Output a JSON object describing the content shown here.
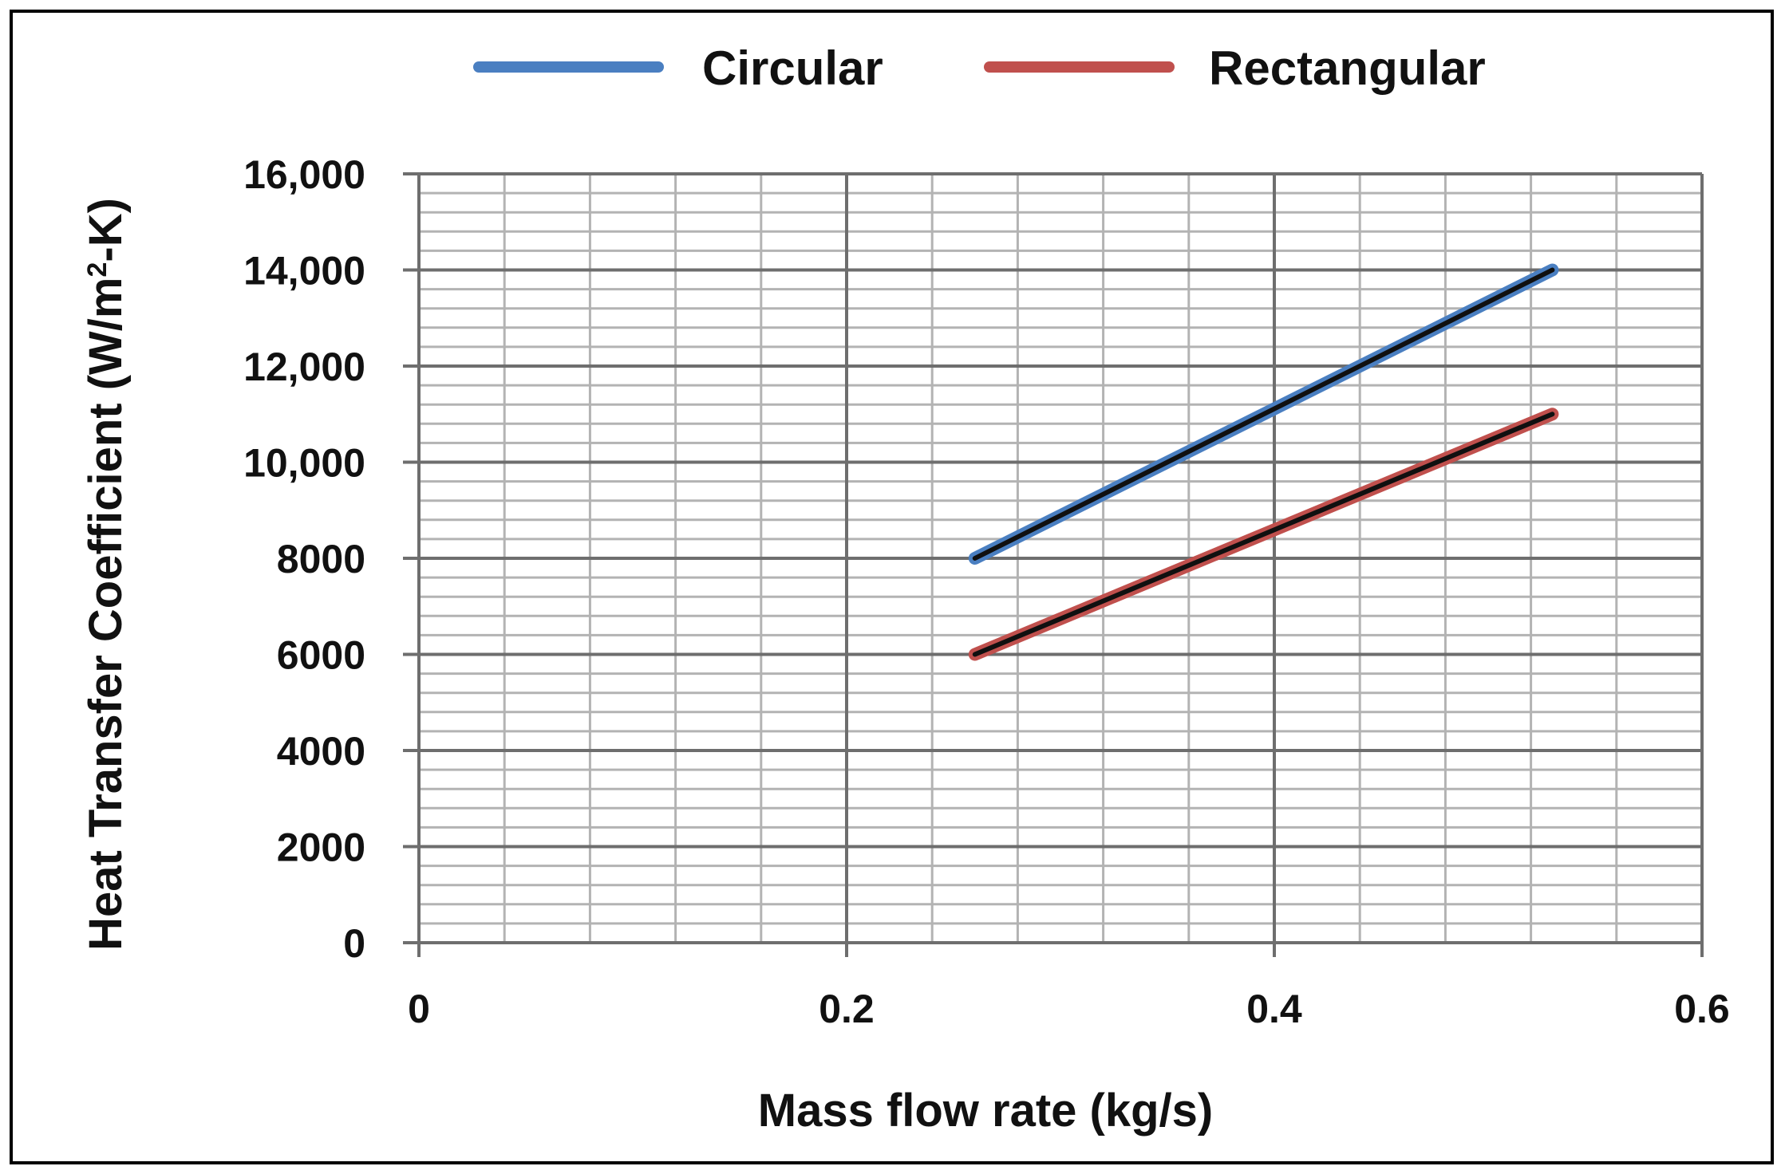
{
  "chart_data": {
    "type": "line",
    "title": "",
    "xlabel": "Mass flow rate (kg/s)",
    "ylabel_parts": {
      "main": "Heat Transfer Coefficient  (W/m",
      "sup": "2",
      "tail": "-K)"
    },
    "xlim": [
      0,
      0.6
    ],
    "ylim": [
      0,
      16000
    ],
    "x_ticks": [
      0,
      0.2,
      0.4,
      0.6
    ],
    "x_tick_labels": [
      "0",
      "0.2",
      "0.4",
      "0.6"
    ],
    "y_ticks": [
      0,
      2000,
      4000,
      6000,
      8000,
      10000,
      12000,
      14000,
      16000
    ],
    "y_tick_labels": [
      "0",
      "2000",
      "4000",
      "6000",
      "8000",
      "10,000",
      "12,000",
      "14,000",
      "16,000"
    ],
    "grid": true,
    "legend_position": "top",
    "series": [
      {
        "name": "Circular",
        "color": "#4a7fc1",
        "x": [
          0.26,
          0.53
        ],
        "y": [
          8000,
          14000
        ]
      },
      {
        "name": "Rectangular",
        "color": "#c0504d",
        "x": [
          0.26,
          0.53
        ],
        "y": [
          6000,
          11000
        ]
      }
    ]
  }
}
